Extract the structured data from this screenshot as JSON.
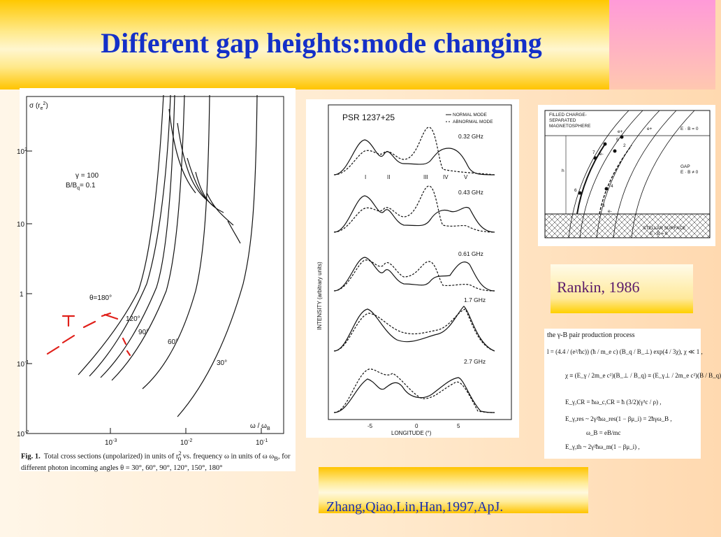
{
  "slide": {
    "title": "Different gap heights:mode changing",
    "caption_rankin": "Rankin, 1986",
    "reference": "Zhang,Qiao,Lin,Han,1997,ApJ."
  },
  "fig1": {
    "y_axis_label": "σ (r",
    "y_axis_label_sub": "e",
    "y_axis_label_sup": "2",
    "y_axis_label_end": ")",
    "x_axis_label": "ω / ω",
    "x_axis_label_sub": "B",
    "y_ticks": [
      "10",
      "10",
      "1",
      "10",
      "10"
    ],
    "y_tick_sups": [
      "2",
      "",
      "",
      "-1",
      "-2"
    ],
    "x_ticks": [
      "10",
      "10",
      "10"
    ],
    "x_tick_sups": [
      "-3",
      "-2",
      "-1"
    ],
    "params": [
      "γ = 100",
      "B/B",
      "= 0.1"
    ],
    "params_sub": "q",
    "angles": [
      "θ=180°",
      "120°",
      "90°",
      "60°",
      "30°"
    ],
    "caption_label": "Fig. 1.",
    "caption_text": "Total cross sections (unpolarized) in units of r",
    "caption_text2": " vs. frequency ω in units of ω",
    "caption_text3": ", for different photon incoming angles θ = 30°, 60°, 90°, 120°, 150°, 180°"
  },
  "fig2": {
    "title": "PSR 1237+25",
    "legend": [
      "NORMAL MODE",
      "ABNORMAL MODE"
    ],
    "frequencies": [
      "0.32 GHz",
      "0.43 GHz",
      "0.61 GHz",
      "1.7 GHz",
      "2.7 GHz"
    ],
    "components": [
      "I",
      "II",
      "III",
      "IV",
      "V"
    ],
    "y_label": "INTENSITY (arbitrary units)",
    "x_label": "LONGITUDE (°)",
    "x_ticks": [
      "-5",
      "0",
      "5"
    ]
  },
  "fig3": {
    "top_label": [
      "FILLED CHARGE-",
      "SEPARATED",
      "MAGNETOSPHERE"
    ],
    "top_eq": "E · B = 0",
    "gap_label": "GAP",
    "gap_eq": "E · B ≠ 0",
    "height_label": "h",
    "surface_label": "STELLAR SURFACE",
    "surface_eq": "E · B = 0",
    "particles": [
      "e+",
      "e-",
      "e+",
      "e-",
      "e+",
      "e-"
    ],
    "numbers": [
      "1",
      "2",
      "3",
      "4",
      "5",
      "6",
      "7",
      "8"
    ]
  },
  "fig4": {
    "heading": "the γ-B pair production process",
    "lines": [
      "l = (4.4 / (e²/ħc)) (ħ / m_e c) (B_q / B_⊥) exp(4 / 3χ),   χ ≪ 1 ,",
      "χ ≡ (E_γ / 2m_e c²)(B_⊥ / B_q) ≡ (E_γ⊥ / 2m_e c²)(B / B_q)",
      "E_γ,CR = ħω_c,CR = ħ (3/2)(γ³c / ρ) ,",
      "E_γ,res ~ 2γ²ħω_res(1 − βμ_i) = 2ħγω_B ,",
      "ω_B = eB/mc",
      "E_γ,th ~ 2γ²ħω_m(1 − βμ_i) ,"
    ]
  }
}
